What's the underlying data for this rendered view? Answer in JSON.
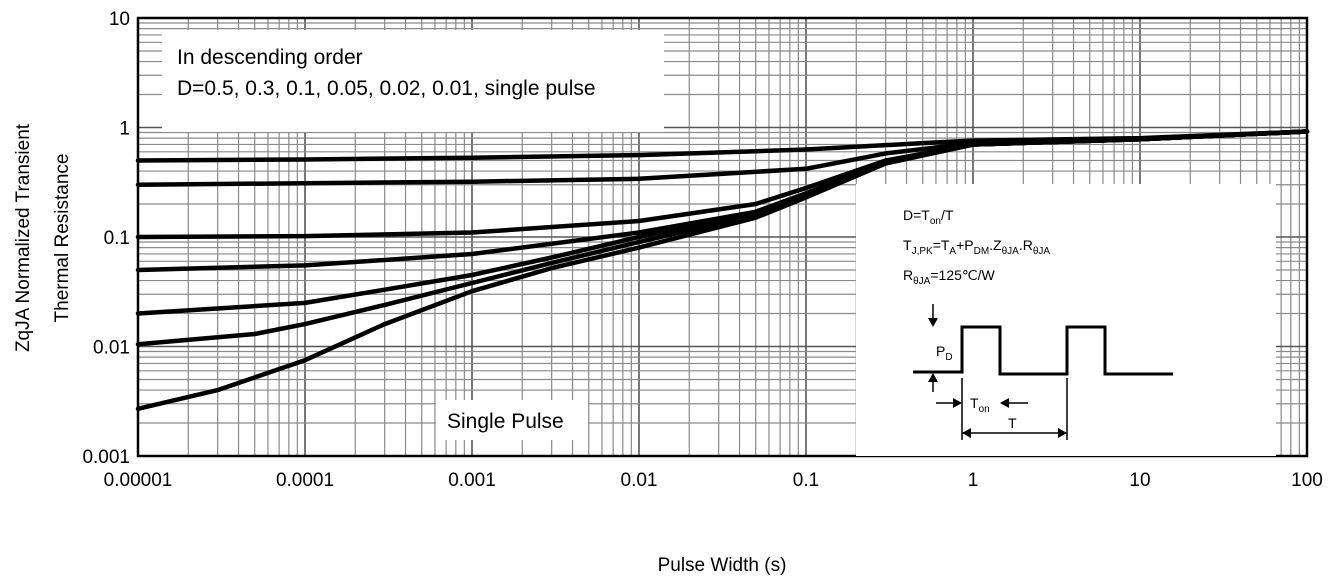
{
  "chart_data": {
    "type": "line",
    "xscale": "log",
    "yscale": "log",
    "xlim": [
      1e-05,
      100
    ],
    "ylim": [
      0.001,
      10
    ],
    "xlabel": "Pulse Width (s)",
    "ylabel_line1": "ZqJA Normalized Transient",
    "ylabel_line2": "Thermal Resistance",
    "x_ticks": [
      {
        "value": 1e-05,
        "label": "0.00001"
      },
      {
        "value": 0.0001,
        "label": "0.0001"
      },
      {
        "value": 0.001,
        "label": "0.001"
      },
      {
        "value": 0.01,
        "label": "0.01"
      },
      {
        "value": 0.1,
        "label": "0.1"
      },
      {
        "value": 1,
        "label": "1"
      },
      {
        "value": 10,
        "label": "10"
      },
      {
        "value": 100,
        "label": "100"
      }
    ],
    "y_ticks": [
      {
        "value": 0.001,
        "label": "0.001"
      },
      {
        "value": 0.01,
        "label": "0.01"
      },
      {
        "value": 0.1,
        "label": "0.1"
      },
      {
        "value": 1,
        "label": "1"
      },
      {
        "value": 10,
        "label": "10"
      }
    ],
    "grid": true,
    "legend_line1": "In descending order",
    "legend_line2": "D=0.5, 0.3, 0.1, 0.05, 0.02, 0.01, single pulse",
    "single_pulse_label": "Single Pulse",
    "series": [
      {
        "x": [
          1e-05,
          0.0001,
          0.001,
          0.01,
          0.1,
          0.5,
          1,
          10,
          100
        ],
        "y": [
          0.5,
          0.51,
          0.53,
          0.56,
          0.63,
          0.72,
          0.76,
          0.8,
          0.92
        ]
      },
      {
        "x": [
          1e-05,
          0.0001,
          0.001,
          0.01,
          0.1,
          0.3,
          1,
          10,
          100
        ],
        "y": [
          0.3,
          0.31,
          0.32,
          0.34,
          0.42,
          0.58,
          0.72,
          0.78,
          0.92
        ]
      },
      {
        "x": [
          1e-05,
          0.0001,
          0.001,
          0.01,
          0.05,
          0.1,
          0.3,
          1,
          10,
          100
        ],
        "y": [
          0.1,
          0.102,
          0.11,
          0.14,
          0.2,
          0.28,
          0.5,
          0.7,
          0.78,
          0.92
        ]
      },
      {
        "x": [
          1e-05,
          0.0001,
          0.001,
          0.01,
          0.05,
          0.1,
          0.3,
          1,
          10,
          100
        ],
        "y": [
          0.05,
          0.055,
          0.07,
          0.11,
          0.17,
          0.25,
          0.48,
          0.7,
          0.78,
          0.92
        ]
      },
      {
        "x": [
          1e-05,
          0.0001,
          0.0003,
          0.001,
          0.003,
          0.01,
          0.05,
          0.1,
          0.3,
          1,
          10,
          100
        ],
        "y": [
          0.02,
          0.025,
          0.033,
          0.045,
          0.065,
          0.1,
          0.17,
          0.25,
          0.48,
          0.7,
          0.78,
          0.92
        ]
      },
      {
        "x": [
          1e-05,
          5e-05,
          0.0001,
          0.0003,
          0.001,
          0.003,
          0.01,
          0.05,
          0.1,
          0.3,
          1,
          10,
          100
        ],
        "y": [
          0.0105,
          0.013,
          0.016,
          0.024,
          0.038,
          0.058,
          0.09,
          0.16,
          0.24,
          0.47,
          0.7,
          0.78,
          0.92
        ]
      },
      {
        "x": [
          1e-05,
          3e-05,
          0.0001,
          0.0003,
          0.001,
          0.003,
          0.01,
          0.05,
          0.1,
          0.3,
          1,
          10,
          100
        ],
        "y": [
          0.0027,
          0.004,
          0.0075,
          0.016,
          0.032,
          0.052,
          0.08,
          0.15,
          0.23,
          0.47,
          0.7,
          0.78,
          0.92
        ]
      }
    ],
    "inset": {
      "formula1_main": "D=T",
      "formula1_sub": "on",
      "formula1_tail": "/T",
      "f2_a": "T",
      "f2_a_sub": "J,PK",
      "f2_b": "=T",
      "f2_b_sub": "A",
      "f2_c": "+P",
      "f2_c_sub": "DM",
      "f2_d": ".Z",
      "f2_d_sub": "θJA",
      "f2_e": ".R",
      "f2_e_sub": "θJA",
      "f3_a": "R",
      "f3_a_sub": "θJA",
      "f3_b": "=125℃/W",
      "pd_main": "P",
      "pd_sub": "D",
      "ton_main": "T",
      "ton_sub": "on",
      "t_label": "T"
    }
  }
}
